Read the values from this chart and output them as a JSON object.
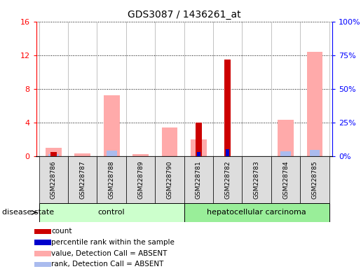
{
  "title": "GDS3087 / 1436261_at",
  "samples": [
    "GSM228786",
    "GSM228787",
    "GSM228788",
    "GSM228789",
    "GSM228790",
    "GSM228781",
    "GSM228782",
    "GSM228783",
    "GSM228784",
    "GSM228785"
  ],
  "count": [
    0.5,
    0.0,
    0.0,
    0.0,
    0.0,
    4.0,
    11.5,
    0.0,
    0.0,
    0.0
  ],
  "percentile_rank": [
    0.0,
    0.0,
    0.0,
    0.0,
    0.0,
    3.0,
    5.0,
    0.0,
    0.0,
    0.0
  ],
  "value_absent": [
    1.0,
    0.3,
    7.2,
    0.2,
    3.4,
    2.0,
    0.0,
    0.0,
    4.3,
    12.4
  ],
  "rank_absent": [
    1.5,
    0.0,
    4.2,
    0.0,
    0.0,
    0.0,
    0.0,
    0.0,
    3.6,
    4.5
  ],
  "ylim_left": [
    0,
    16
  ],
  "ylim_right": [
    0,
    100
  ],
  "yticks_left": [
    0,
    4,
    8,
    12,
    16
  ],
  "ytick_labels_left": [
    "0",
    "4",
    "8",
    "12",
    "16"
  ],
  "yticks_right_pct": [
    0,
    25,
    50,
    75,
    100
  ],
  "ytick_labels_right": [
    "0%",
    "25%",
    "50%",
    "75%",
    "100%"
  ],
  "color_count": "#cc0000",
  "color_percentile": "#0000cc",
  "color_value_absent": "#ffaaaa",
  "color_rank_absent": "#aabbee",
  "color_control_bg": "#ccffcc",
  "color_cancer_bg": "#99ee99",
  "color_header_bg": "#dddddd",
  "legend_items": [
    {
      "label": "count",
      "color": "#cc0000"
    },
    {
      "label": "percentile rank within the sample",
      "color": "#0000cc"
    },
    {
      "label": "value, Detection Call = ABSENT",
      "color": "#ffaaaa"
    },
    {
      "label": "rank, Detection Call = ABSENT",
      "color": "#aabbee"
    }
  ]
}
